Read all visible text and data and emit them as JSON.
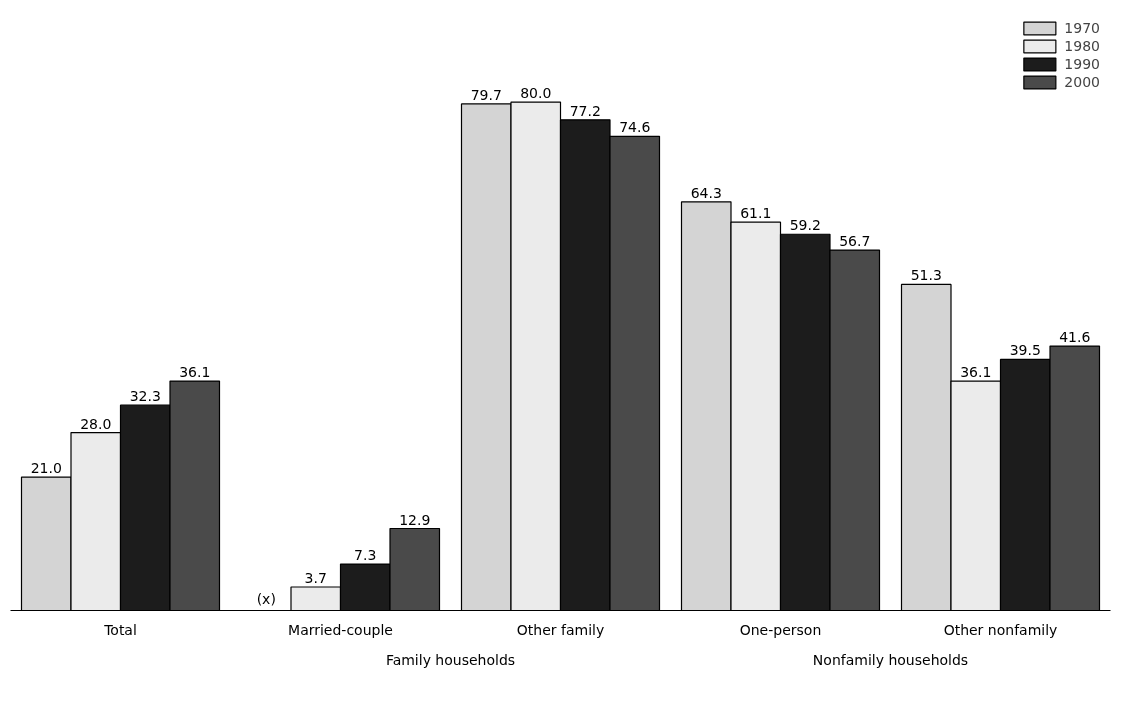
{
  "chart_data": {
    "type": "bar",
    "categories": [
      "Total",
      "Married-couple",
      "Other family",
      "One-person",
      "Other nonfamily"
    ],
    "series": [
      {
        "name": "1970",
        "color": "#d4d4d4",
        "values": [
          21.0,
          null,
          79.7,
          64.3,
          51.3
        ],
        "value_labels": [
          "21.0",
          "(x)",
          "79.7",
          "64.3",
          "51.3"
        ]
      },
      {
        "name": "1980",
        "color": "#ebebeb",
        "values": [
          28.0,
          3.7,
          80.0,
          61.1,
          36.1
        ],
        "value_labels": [
          "28.0",
          "3.7",
          "80.0",
          "61.1",
          "36.1"
        ]
      },
      {
        "name": "1990",
        "color": "#1c1c1c",
        "values": [
          32.3,
          7.3,
          77.2,
          59.2,
          39.5
        ],
        "value_labels": [
          "32.3",
          "7.3",
          "77.2",
          "59.2",
          "39.5"
        ]
      },
      {
        "name": "2000",
        "color": "#4a4a4a",
        "values": [
          36.1,
          12.9,
          74.6,
          56.7,
          41.6
        ],
        "value_labels": [
          "36.1",
          "12.9",
          "74.6",
          "56.7",
          "41.6"
        ]
      }
    ],
    "annotations": [
      "Family households",
      "Nonfamily households"
    ],
    "legend": "top right",
    "grid": false
  }
}
